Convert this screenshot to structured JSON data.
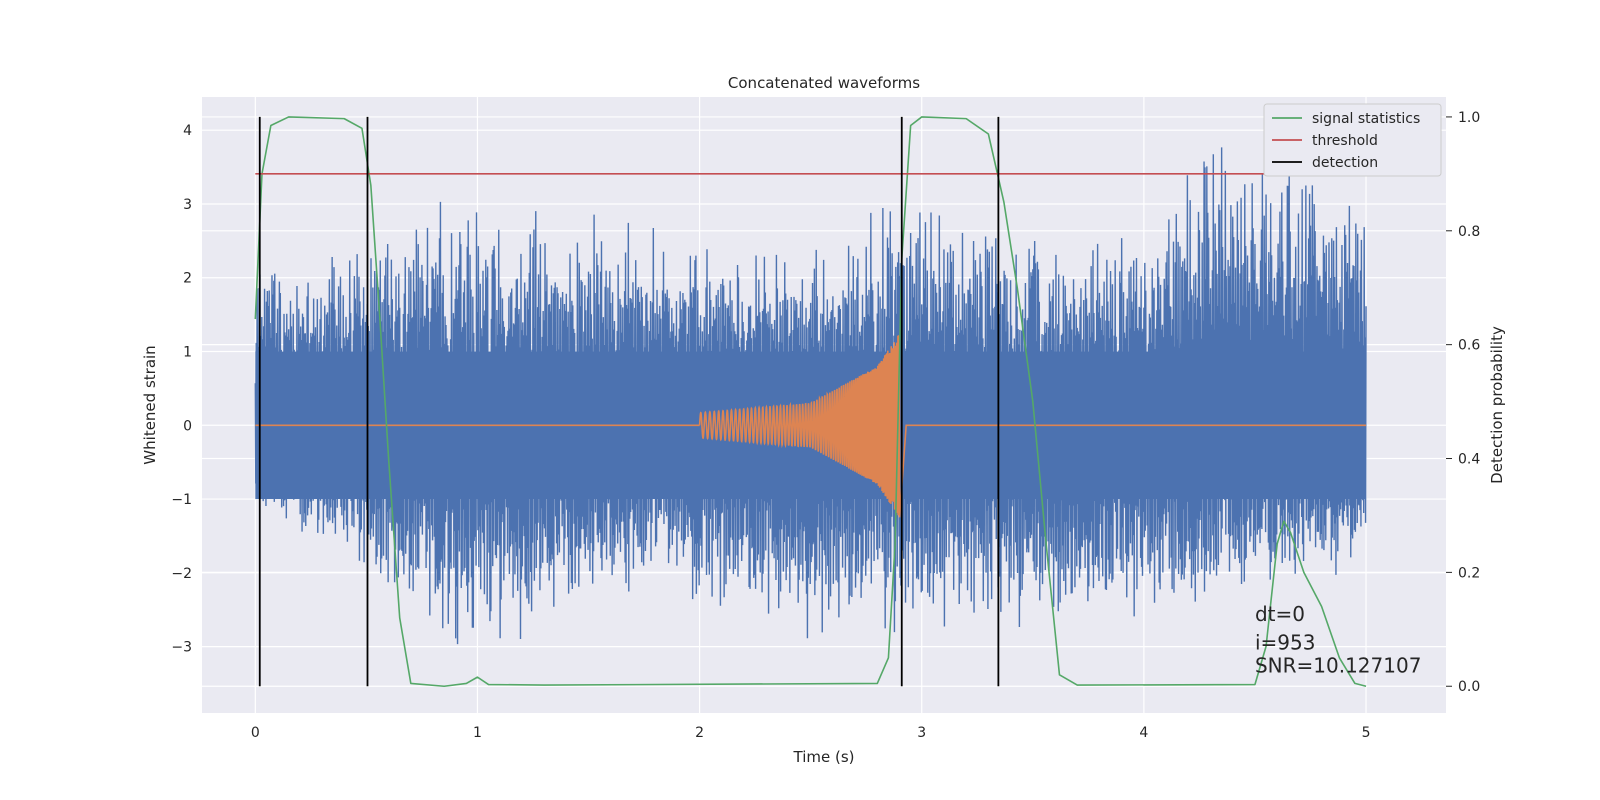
{
  "chart_data": {
    "type": "line",
    "title": "Concatenated waveforms",
    "xlabel": "Time (s)",
    "ylabel_left": "Whitened strain",
    "ylabel_right": "Detection probability",
    "xlim": [
      -0.24,
      5.36
    ],
    "ylim_left": [
      -3.9,
      4.45
    ],
    "ylim_right": [
      -0.047,
      1.035
    ],
    "x_ticks": [
      {
        "value": 0,
        "label": "0"
      },
      {
        "value": 1,
        "label": "1"
      },
      {
        "value": 2,
        "label": "2"
      },
      {
        "value": 3,
        "label": "3"
      },
      {
        "value": 4,
        "label": "4"
      },
      {
        "value": 5,
        "label": "5"
      }
    ],
    "y_left_ticks": [
      {
        "value": 4,
        "label": "4"
      },
      {
        "value": 3,
        "label": "3"
      },
      {
        "value": 2,
        "label": "2"
      },
      {
        "value": 1,
        "label": "1"
      },
      {
        "value": 0,
        "label": "0"
      },
      {
        "value": -1,
        "label": "−1"
      },
      {
        "value": -2,
        "label": "−2"
      },
      {
        "value": -3,
        "label": "−3"
      }
    ],
    "y_right_ticks": [
      {
        "value": 1.0,
        "label": "1.0"
      },
      {
        "value": 0.8,
        "label": "0.8"
      },
      {
        "value": 0.6,
        "label": "0.6"
      },
      {
        "value": 0.4,
        "label": "0.4"
      },
      {
        "value": 0.2,
        "label": "0.2"
      },
      {
        "value": 0.0,
        "label": "0.0"
      }
    ],
    "grid": true,
    "legend_position": "top-right",
    "legend": [
      {
        "label": "signal statistics",
        "color": "#55a868"
      },
      {
        "label": "threshold",
        "color": "#c44e52"
      },
      {
        "label": "detection",
        "color": "#000000"
      }
    ],
    "series": [
      {
        "axis": "left",
        "color": "#4c72b0",
        "style": "noise",
        "x_range": [
          0,
          5
        ],
        "envelope_points": [
          {
            "x": 0.0,
            "upper": 2.5,
            "lower": -1.2
          },
          {
            "x": 0.5,
            "upper": 2.6,
            "lower": -2.1
          },
          {
            "x": 1.0,
            "upper": 3.3,
            "lower": -3.3
          },
          {
            "x": 1.5,
            "upper": 2.9,
            "lower": -2.4
          },
          {
            "x": 2.0,
            "upper": 2.6,
            "lower": -2.5
          },
          {
            "x": 2.5,
            "upper": 2.5,
            "lower": -3.0
          },
          {
            "x": 2.9,
            "upper": 3.3,
            "lower": -3.0
          },
          {
            "x": 3.5,
            "upper": 2.7,
            "lower": -2.9
          },
          {
            "x": 4.0,
            "upper": 2.6,
            "lower": -2.7
          },
          {
            "x": 4.33,
            "upper": 4.1,
            "lower": -2.7
          },
          {
            "x": 4.65,
            "upper": 3.7,
            "lower": -2.2
          },
          {
            "x": 5.0,
            "upper": 3.3,
            "lower": -2.3
          }
        ]
      },
      {
        "axis": "left",
        "color": "#dd8452",
        "style": "chirp",
        "x_range": [
          0,
          5
        ],
        "points": [
          {
            "x": 0.0,
            "y": 0
          },
          {
            "x": 2.0,
            "y": 0
          },
          {
            "x": 2.0,
            "y_amp": 0.17
          },
          {
            "x": 2.5,
            "y_amp": 0.3
          },
          {
            "x": 2.8,
            "y_amp": 0.8
          },
          {
            "x": 2.9,
            "y_amp": 1.25
          },
          {
            "x": 2.93,
            "y": 0
          },
          {
            "x": 5.0,
            "y": 0
          }
        ]
      },
      {
        "name": "signal statistics",
        "axis": "right",
        "color": "#55a868",
        "points": [
          {
            "x": 0.0,
            "y": 0.645
          },
          {
            "x": 0.03,
            "y": 0.9
          },
          {
            "x": 0.07,
            "y": 0.985
          },
          {
            "x": 0.15,
            "y": 1.0
          },
          {
            "x": 0.4,
            "y": 0.997
          },
          {
            "x": 0.48,
            "y": 0.98
          },
          {
            "x": 0.52,
            "y": 0.88
          },
          {
            "x": 0.56,
            "y": 0.65
          },
          {
            "x": 0.6,
            "y": 0.4
          },
          {
            "x": 0.65,
            "y": 0.12
          },
          {
            "x": 0.7,
            "y": 0.005
          },
          {
            "x": 0.85,
            "y": 0.0
          },
          {
            "x": 0.95,
            "y": 0.005
          },
          {
            "x": 1.0,
            "y": 0.016
          },
          {
            "x": 1.05,
            "y": 0.003
          },
          {
            "x": 1.3,
            "y": 0.002
          },
          {
            "x": 2.8,
            "y": 0.005
          },
          {
            "x": 2.85,
            "y": 0.05
          },
          {
            "x": 2.88,
            "y": 0.25
          },
          {
            "x": 2.91,
            "y": 0.75
          },
          {
            "x": 2.95,
            "y": 0.985
          },
          {
            "x": 3.0,
            "y": 1.0
          },
          {
            "x": 3.2,
            "y": 0.997
          },
          {
            "x": 3.3,
            "y": 0.97
          },
          {
            "x": 3.37,
            "y": 0.85
          },
          {
            "x": 3.43,
            "y": 0.7
          },
          {
            "x": 3.5,
            "y": 0.5
          },
          {
            "x": 3.56,
            "y": 0.25
          },
          {
            "x": 3.62,
            "y": 0.02
          },
          {
            "x": 3.7,
            "y": 0.002
          },
          {
            "x": 4.5,
            "y": 0.003
          },
          {
            "x": 4.55,
            "y": 0.07
          },
          {
            "x": 4.6,
            "y": 0.25
          },
          {
            "x": 4.63,
            "y": 0.29
          },
          {
            "x": 4.66,
            "y": 0.27
          },
          {
            "x": 4.72,
            "y": 0.2
          },
          {
            "x": 4.8,
            "y": 0.14
          },
          {
            "x": 4.88,
            "y": 0.05
          },
          {
            "x": 4.95,
            "y": 0.005
          },
          {
            "x": 5.0,
            "y": 0.0
          }
        ]
      },
      {
        "name": "threshold",
        "axis": "right",
        "color": "#c44e52",
        "points": [
          {
            "x": 0.0,
            "y": 0.9
          },
          {
            "x": 5.1,
            "y": 0.9
          }
        ]
      }
    ],
    "detections": [
      0.02,
      0.505,
      2.91,
      3.345
    ],
    "annotations": [
      {
        "text": "dt=0",
        "x": 4.5,
        "y": -2.65
      },
      {
        "text": "i=953",
        "x": 4.5,
        "y": -3.04
      },
      {
        "text": "SNR=10.127107",
        "x": 4.5,
        "y": -3.35
      }
    ]
  }
}
